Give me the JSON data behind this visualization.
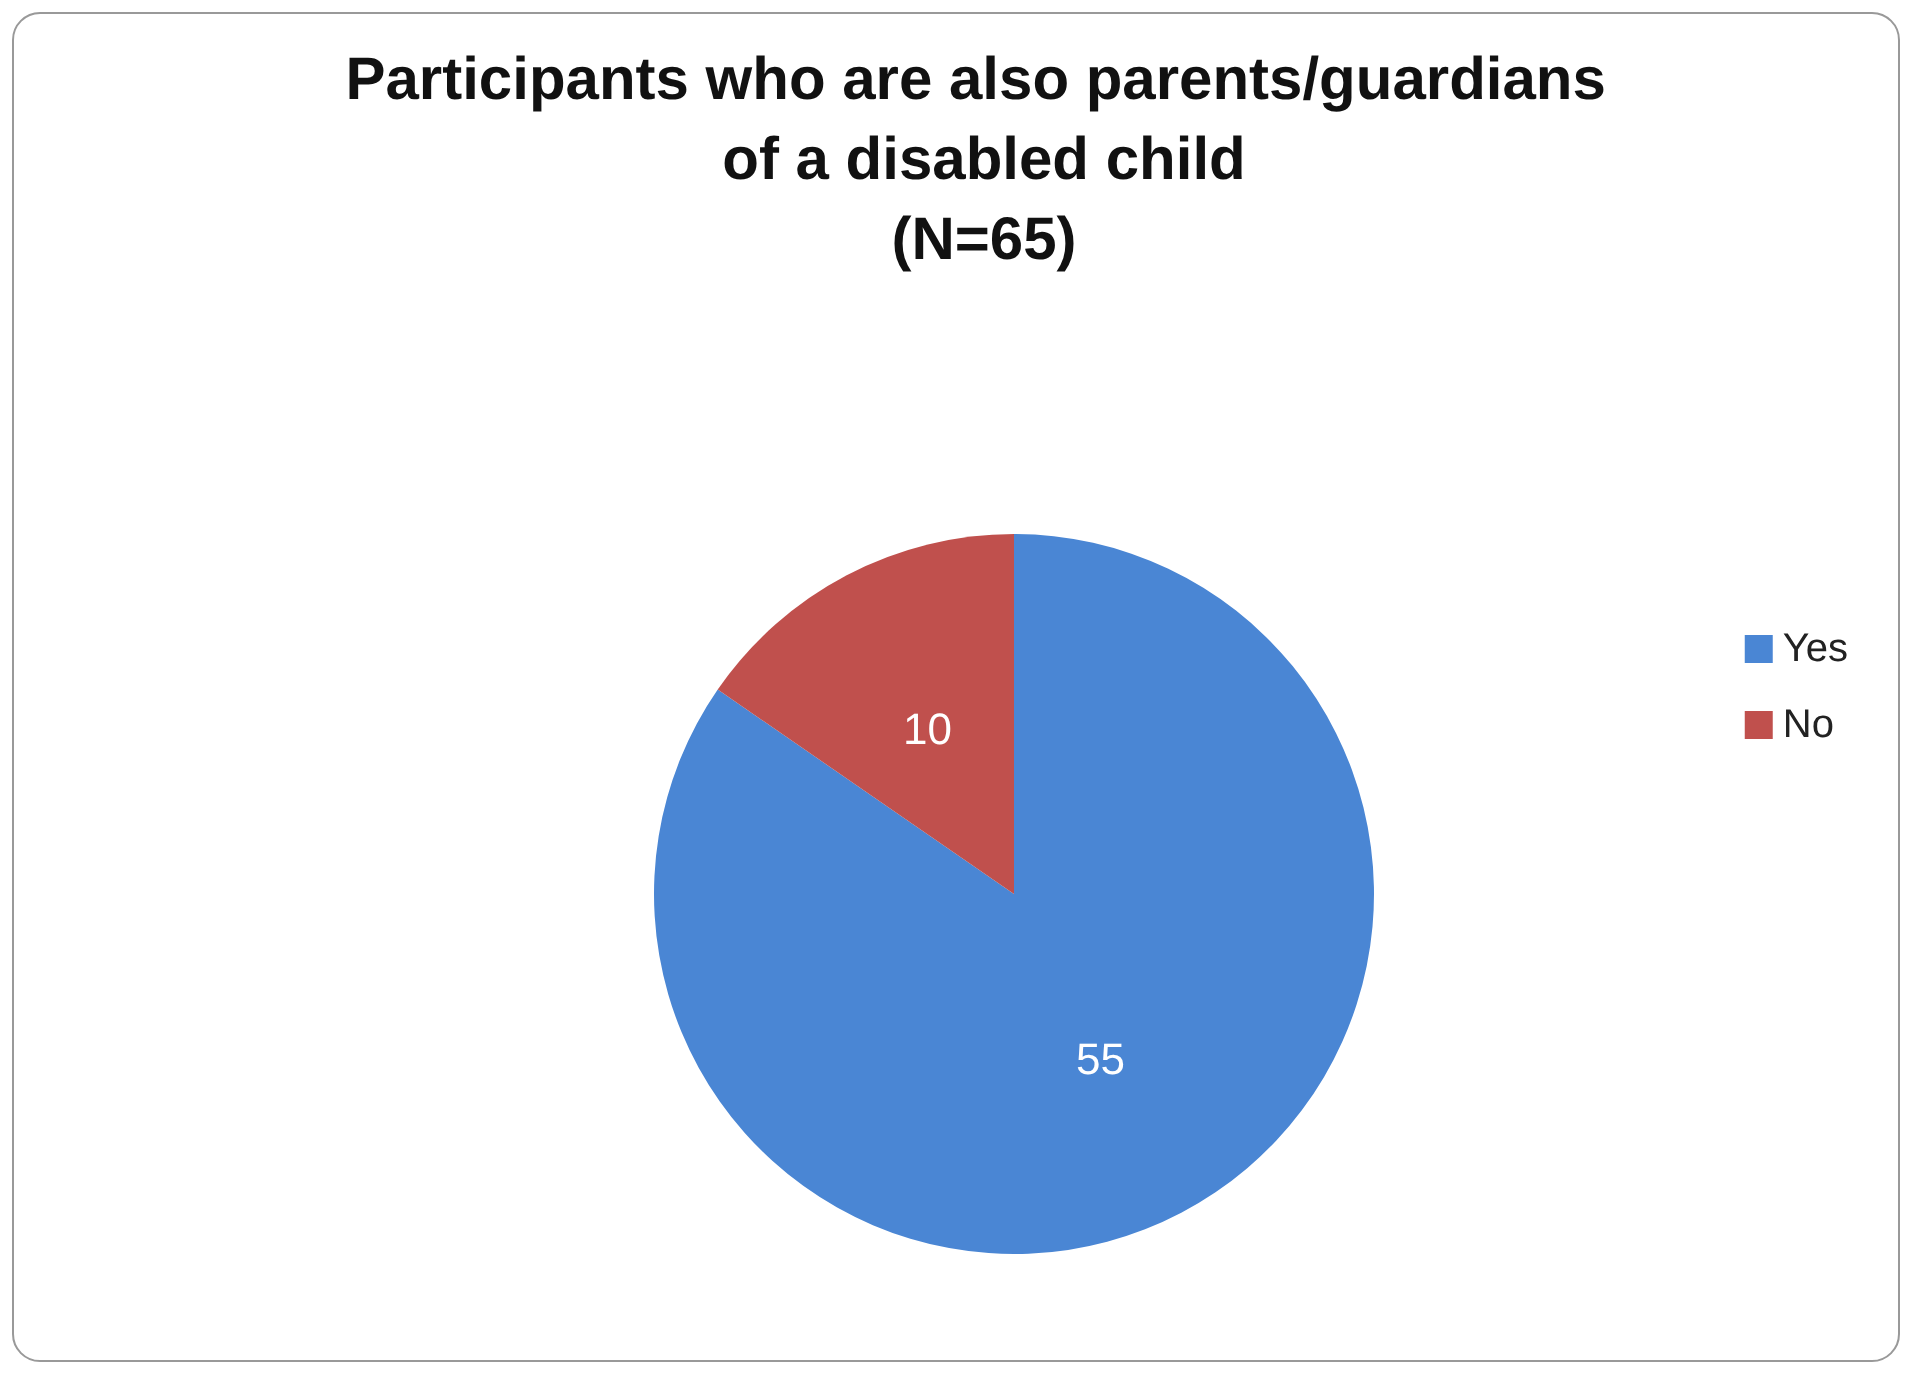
{
  "chart_data": {
    "type": "pie",
    "title": "Participants who are also parents/guardians of a disabled child",
    "subtitle": "(N=65)",
    "categories": [
      "Yes",
      "No"
    ],
    "values": [
      55,
      10
    ],
    "colors": [
      "#4a86d4",
      "#c0504d"
    ],
    "data_labels": true,
    "legend": "right"
  }
}
